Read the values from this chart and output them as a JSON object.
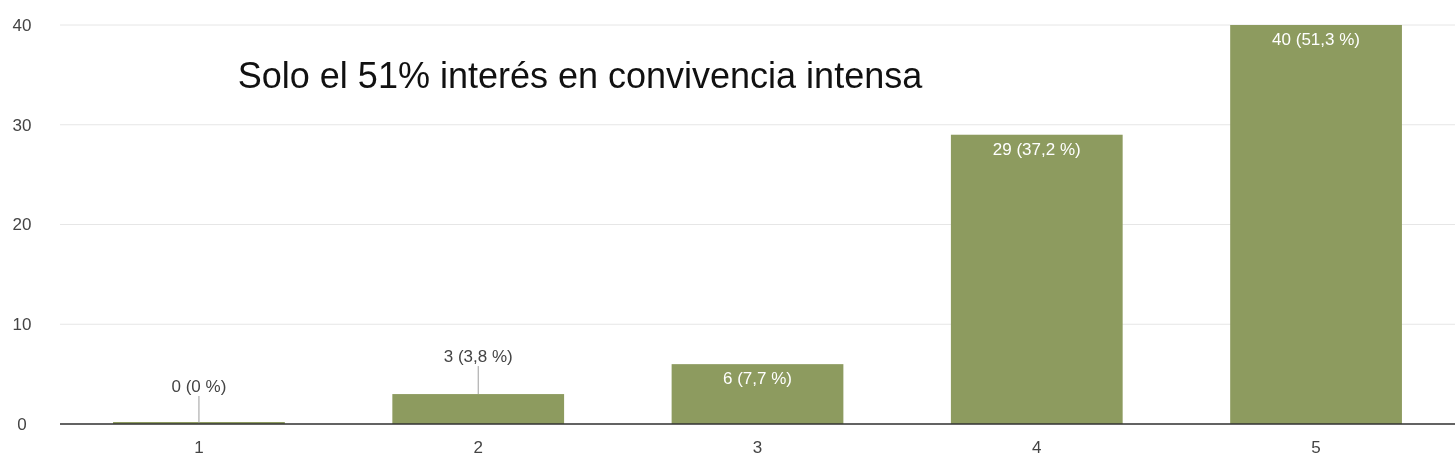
{
  "chart_data": {
    "type": "bar",
    "categories": [
      "1",
      "2",
      "3",
      "4",
      "5"
    ],
    "values": [
      0,
      3,
      6,
      29,
      40
    ],
    "value_labels": [
      "0 (0 %)",
      "3 (3,8 %)",
      "6 (7,7 %)",
      "29 (37,2 %)",
      "40 (51,3 %)"
    ],
    "color": "#8d9b5f",
    "ylim": [
      0,
      40
    ],
    "yticks": [
      0,
      10,
      20,
      30,
      40
    ],
    "grid": "y",
    "annotations": [
      "Solo el 51% interés en convivencia intensa"
    ]
  }
}
